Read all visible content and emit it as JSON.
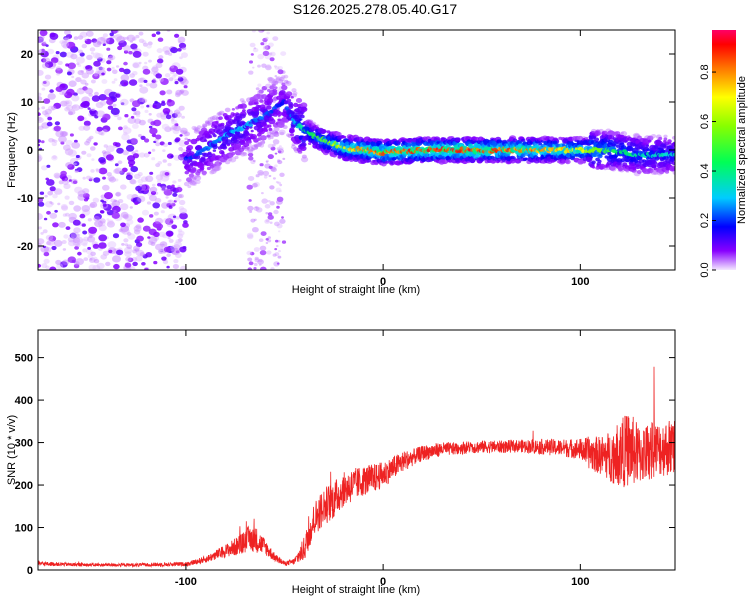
{
  "title": "S126.2025.278.05.40.G17",
  "colors": {
    "snr_line": "#ee2222",
    "axis": "#000000"
  },
  "chart_data": [
    {
      "type": "heatmap",
      "xlabel": "Height of straight line (km)",
      "ylabel": "Frequency (Hz)",
      "xlim": [
        -175,
        148
      ],
      "ylim": [
        -25,
        25
      ],
      "xticks": [
        -100,
        0,
        100
      ],
      "yticks": [
        -20,
        -10,
        0,
        10,
        20
      ],
      "colorbar": {
        "label": "Normalized spectral amplitude",
        "range": [
          0,
          0.97
        ],
        "ticks": [
          0.0,
          0.2,
          0.4,
          0.6,
          0.8
        ]
      },
      "ridge": [
        {
          "x": -100,
          "f": -2,
          "amp": 0.2
        },
        {
          "x": -90,
          "f": 0,
          "amp": 0.25
        },
        {
          "x": -80,
          "f": 3,
          "amp": 0.3
        },
        {
          "x": -70,
          "f": 5,
          "amp": 0.3
        },
        {
          "x": -60,
          "f": 7,
          "amp": 0.25
        },
        {
          "x": -50,
          "f": 10,
          "amp": 0.2
        },
        {
          "x": -45,
          "f": 6,
          "amp": 0.3
        },
        {
          "x": -40,
          "f": 4,
          "amp": 0.45
        },
        {
          "x": -30,
          "f": 2,
          "amp": 0.55
        },
        {
          "x": -20,
          "f": 0.5,
          "amp": 0.75
        },
        {
          "x": -10,
          "f": 0,
          "amp": 0.85
        },
        {
          "x": 0,
          "f": -0.5,
          "amp": 0.9
        },
        {
          "x": 20,
          "f": 0,
          "amp": 0.95
        },
        {
          "x": 40,
          "f": 0,
          "amp": 0.95
        },
        {
          "x": 60,
          "f": 0,
          "amp": 0.9
        },
        {
          "x": 80,
          "f": 0,
          "amp": 0.85
        },
        {
          "x": 100,
          "f": 0,
          "amp": 0.75
        },
        {
          "x": 115,
          "f": 0,
          "amp": 0.5
        },
        {
          "x": 130,
          "f": -1,
          "amp": 0.4
        },
        {
          "x": 148,
          "f": -1,
          "amp": 0.35
        }
      ]
    },
    {
      "type": "line",
      "xlabel": "Height of straight line (km)",
      "ylabel": "SNR (10 * v/v)",
      "xlim": [
        -175,
        148
      ],
      "ylim": [
        0,
        565
      ],
      "xticks": [
        -100,
        0,
        100
      ],
      "yticks": [
        0,
        100,
        200,
        300,
        400,
        500
      ],
      "series": [
        {
          "x": [
            -175,
            -150,
            -125,
            -100,
            -90,
            -80,
            -72,
            -68,
            -64,
            -60,
            -55,
            -50,
            -45,
            -40,
            -35,
            -30,
            -25,
            -20,
            -15,
            -10,
            -5,
            0,
            5,
            10,
            15,
            20,
            25,
            30,
            35,
            40,
            50,
            60,
            70,
            80,
            90,
            100,
            105,
            110,
            115,
            120,
            125,
            130,
            135,
            140,
            148
          ],
          "y": [
            15,
            12,
            12,
            14,
            25,
            45,
            60,
            75,
            70,
            55,
            30,
            15,
            20,
            50,
            120,
            150,
            165,
            190,
            200,
            210,
            215,
            225,
            240,
            255,
            265,
            275,
            280,
            285,
            285,
            288,
            290,
            290,
            292,
            290,
            288,
            285,
            275,
            270,
            268,
            275,
            285,
            270,
            280,
            285,
            290
          ],
          "noise": [
            5,
            4,
            4,
            5,
            8,
            15,
            25,
            30,
            30,
            20,
            10,
            5,
            8,
            30,
            40,
            45,
            45,
            40,
            40,
            35,
            35,
            30,
            28,
            25,
            20,
            18,
            18,
            16,
            15,
            15,
            15,
            15,
            15,
            18,
            20,
            25,
            40,
            45,
            60,
            80,
            90,
            70,
            70,
            65,
            70
          ]
        }
      ]
    }
  ]
}
